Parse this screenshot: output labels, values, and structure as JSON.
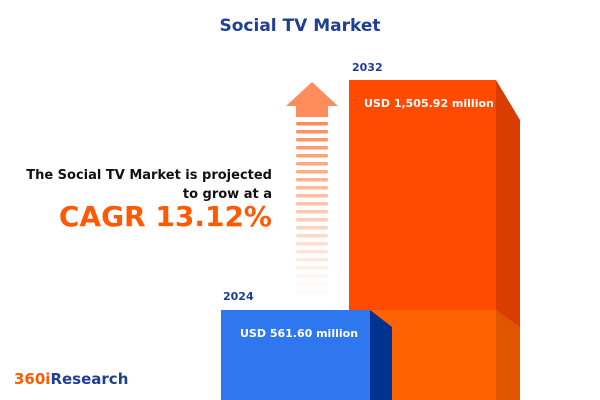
{
  "title": "Social TV Market",
  "lead_text": "The Social TV Market is projected to grow at a",
  "cagr_text": "CAGR 13.12%",
  "logo": {
    "part1": "360i",
    "part2": "Research"
  },
  "colors": {
    "bar_2024": "#2f77ee",
    "bar_2032": "#ff4a00",
    "title": "#1f3f94",
    "accent": "#ff5a00"
  },
  "chart_data": {
    "type": "bar",
    "categories": [
      "2024",
      "2032"
    ],
    "values": [
      561.6,
      1505.92
    ],
    "value_labels": [
      "USD 561.60 million",
      "USD 1,505.92 million"
    ],
    "unit": "USD million",
    "title": "Social TV Market"
  }
}
